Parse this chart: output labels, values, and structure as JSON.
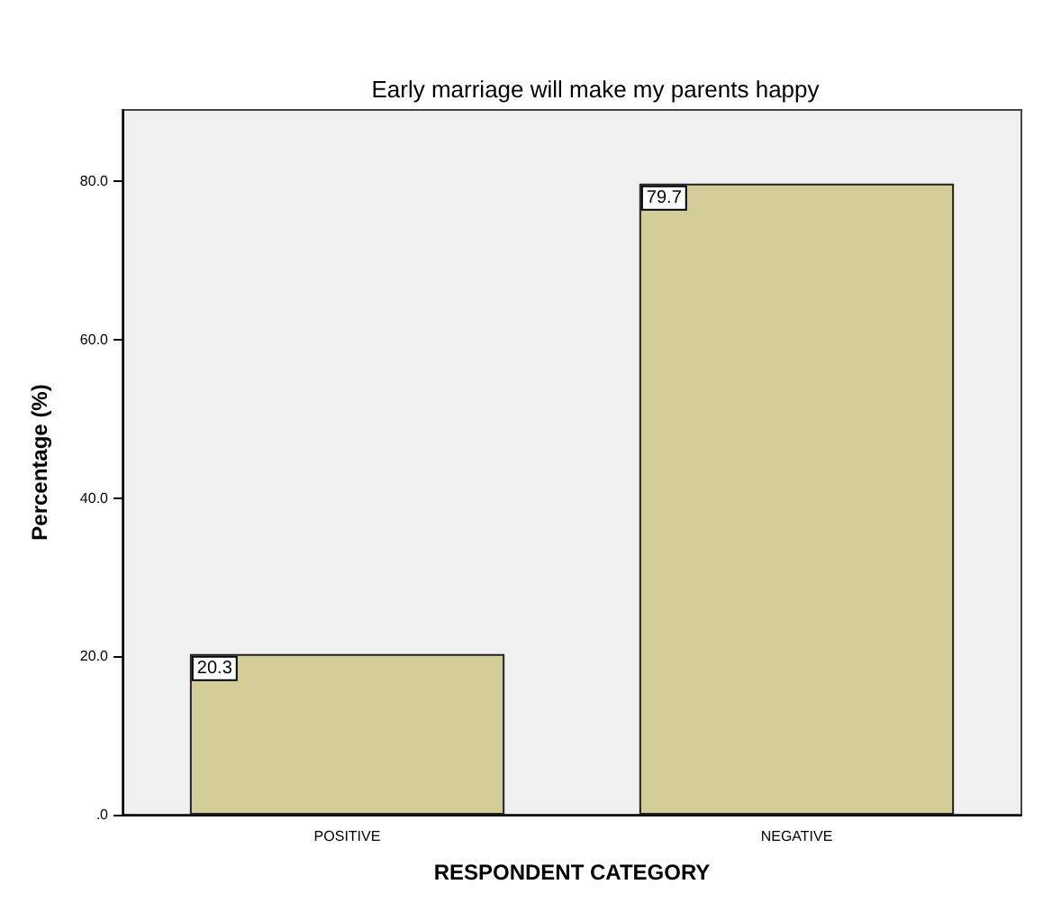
{
  "chart_data": {
    "type": "bar",
    "title": "Early marriage will make my parents happy",
    "xlabel": "RESPONDENT CATEGORY",
    "ylabel": "Percentage (%)",
    "categories": [
      "POSITIVE",
      "NEGATIVE"
    ],
    "values": [
      20.3,
      79.7
    ],
    "color": "#d3ce97",
    "ylim": [
      0,
      89
    ],
    "yticks": [
      {
        "value": 0,
        "label": ".0"
      },
      {
        "value": 20,
        "label": "20.0"
      },
      {
        "value": 40,
        "label": "40.0"
      },
      {
        "value": 60,
        "label": "60.0"
      },
      {
        "value": 80,
        "label": "80.0"
      }
    ],
    "data_labels": true,
    "grid": false
  }
}
